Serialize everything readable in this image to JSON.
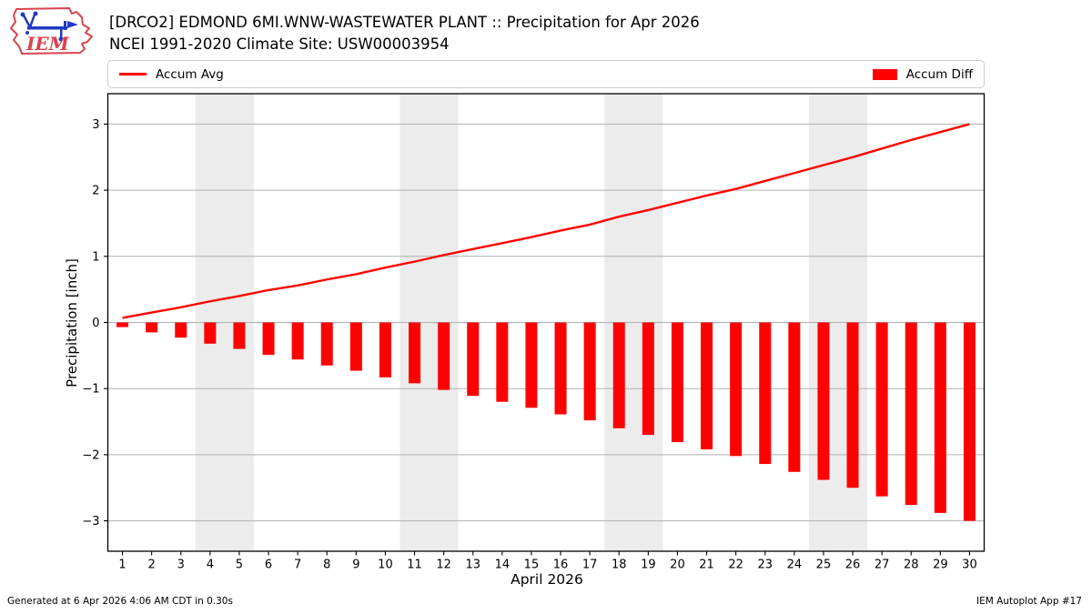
{
  "header": {
    "title_line1": "[DRCO2] EDMOND 6MI.WNW-WASTEWATER PLANT :: Precipitation for Apr 2026",
    "title_line2": "NCEI 1991-2020 Climate Site: USW00003954"
  },
  "logo": {
    "text": "IEM"
  },
  "legend": {
    "avg_label": "Accum Avg",
    "diff_label": "Accum Diff"
  },
  "footer": {
    "generated": "Generated at 6 Apr 2026 4:06 AM CDT in 0.30s",
    "app": "IEM Autoplot App #17"
  },
  "colors": {
    "accent_red": "#ff0000",
    "grid": "#b0b0b0",
    "weekend_band": "#ececec",
    "spine": "#000000",
    "legend_border": "#cccccc",
    "logo_red": "#d9434e",
    "logo_blue": "#2239c4"
  },
  "chart_data": {
    "type": "combo",
    "x": [
      1,
      2,
      3,
      4,
      5,
      6,
      7,
      8,
      9,
      10,
      11,
      12,
      13,
      14,
      15,
      16,
      17,
      18,
      19,
      20,
      21,
      22,
      23,
      24,
      25,
      26,
      27,
      28,
      29,
      30
    ],
    "series": [
      {
        "name": "Accum Avg",
        "type": "line",
        "color": "#ff0000",
        "values": [
          0.07,
          0.15,
          0.23,
          0.32,
          0.4,
          0.49,
          0.56,
          0.65,
          0.73,
          0.83,
          0.92,
          1.02,
          1.11,
          1.2,
          1.29,
          1.39,
          1.48,
          1.6,
          1.7,
          1.81,
          1.92,
          2.02,
          2.14,
          2.26,
          2.38,
          2.5,
          2.63,
          2.76,
          2.88,
          3.0
        ]
      },
      {
        "name": "Accum Diff",
        "type": "bar",
        "color": "#ff0000",
        "values": [
          -0.07,
          -0.15,
          -0.23,
          -0.32,
          -0.4,
          -0.49,
          -0.56,
          -0.65,
          -0.73,
          -0.83,
          -0.92,
          -1.02,
          -1.11,
          -1.2,
          -1.29,
          -1.39,
          -1.48,
          -1.6,
          -1.7,
          -1.81,
          -1.92,
          -2.02,
          -2.14,
          -2.26,
          -2.38,
          -2.5,
          -2.63,
          -2.76,
          -2.88,
          -3.0
        ]
      }
    ],
    "title": "[DRCO2] EDMOND 6MI.WNW-WASTEWATER PLANT :: Precipitation for Apr 2026",
    "xlabel": "April 2026",
    "ylabel": "Precipitation [inch]",
    "xlim": [
      0.5,
      30.5
    ],
    "ylim": [
      -3.46,
      3.46
    ],
    "xticks": [
      1,
      2,
      3,
      4,
      5,
      6,
      7,
      8,
      9,
      10,
      11,
      12,
      13,
      14,
      15,
      16,
      17,
      18,
      19,
      20,
      21,
      22,
      23,
      24,
      25,
      26,
      27,
      28,
      29,
      30
    ],
    "yticks": [
      -3,
      -2,
      -1,
      0,
      1,
      2,
      3
    ],
    "grid": "horizontal",
    "legend_position": "top",
    "weekend_bands": [
      [
        3.5,
        5.5
      ],
      [
        10.5,
        12.5
      ],
      [
        17.5,
        19.5
      ],
      [
        24.5,
        26.5
      ]
    ]
  }
}
